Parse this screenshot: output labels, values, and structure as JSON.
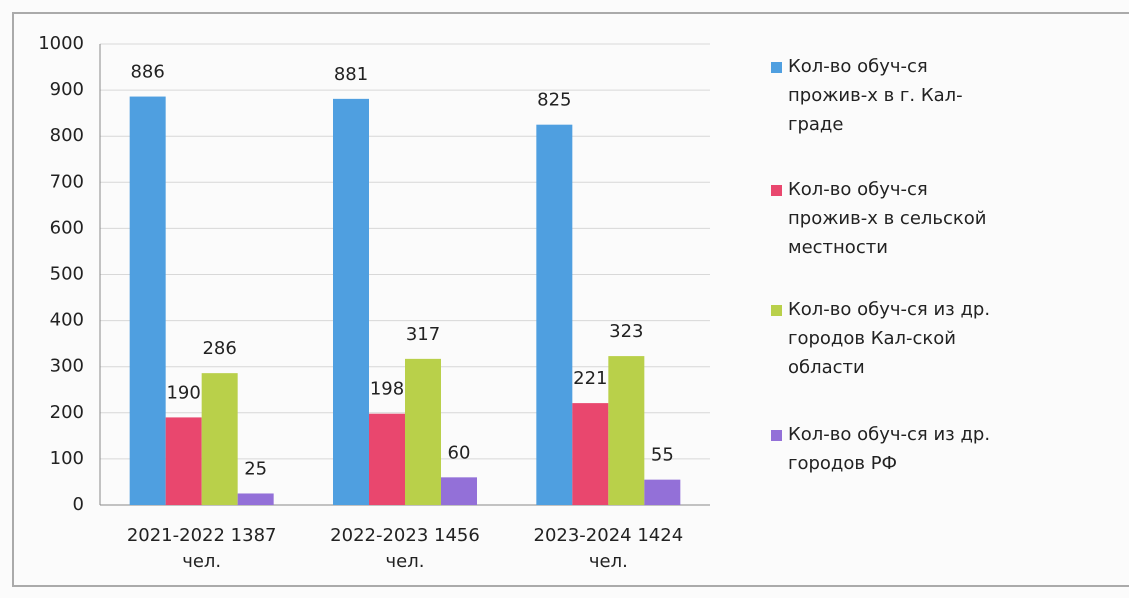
{
  "chart_data": {
    "type": "bar",
    "categories": [
      "2021-2022 1387 чел.",
      "2022-2023 1456 чел.",
      "2023-2024 1424 чел."
    ],
    "series": [
      {
        "name": "Кол-во обуч-ся прожив-х в г. Кал-граде",
        "color": "#4f9fe0",
        "values": [
          886,
          881,
          825
        ]
      },
      {
        "name": "Кол-во обуч-ся прожив-х в сельской местности",
        "color": "#e9476e",
        "values": [
          190,
          198,
          221
        ]
      },
      {
        "name": "Кол-во обуч-ся из др. городов Кал-ской области",
        "color": "#b9d04a",
        "values": [
          286,
          317,
          323
        ]
      },
      {
        "name": "Кол-во обуч-ся из др. городов РФ",
        "color": "#9370d8",
        "values": [
          25,
          60,
          55
        ]
      }
    ],
    "ylim": [
      0,
      1000
    ],
    "yticks": [
      0,
      100,
      200,
      300,
      400,
      500,
      600,
      700,
      800,
      900,
      1000
    ],
    "grid": true,
    "legend": "right"
  }
}
